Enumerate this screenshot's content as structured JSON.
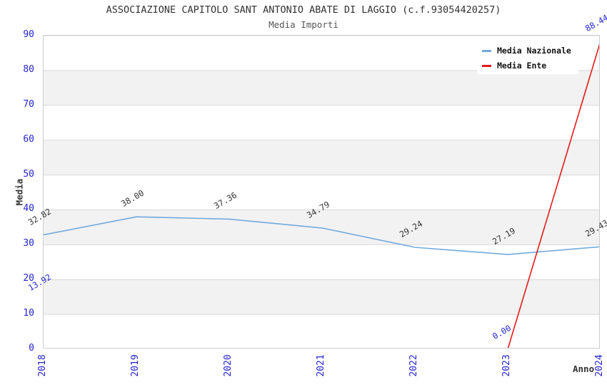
{
  "chart_data": {
    "type": "line",
    "title": "ASSOCIAZIONE CAPITOLO SANT ANTONIO ABATE DI LAGGIO (c.f.93054420257)",
    "subtitle": "Media Importi",
    "xlabel": "Anno",
    "ylabel": "Media",
    "x": [
      2018,
      2019,
      2020,
      2021,
      2022,
      2023,
      2024
    ],
    "ylim": [
      0,
      90
    ],
    "ytick_step": 10,
    "grid": true,
    "legend_position": "top-right",
    "series": [
      {
        "name": "Media Nazionale",
        "color": "#71aadc",
        "label_color": "#333333",
        "values": [
          32.82,
          38.0,
          37.36,
          34.79,
          29.24,
          27.19,
          29.43
        ]
      },
      {
        "name": "Media Ente",
        "color": "#e41a1c",
        "label_color": "#2424cf",
        "values": [
          13.92,
          null,
          null,
          null,
          null,
          0.0,
          88.44
        ]
      }
    ],
    "colors": {
      "axis_tick": "#2424cf",
      "gridline": "#d9d9d9",
      "band": "#f2f2f2",
      "plot_border": "#cccccc",
      "title_text": "#333333"
    }
  }
}
